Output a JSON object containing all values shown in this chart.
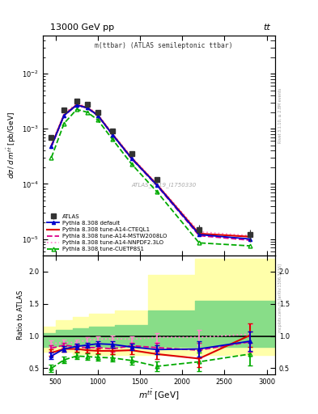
{
  "title_left": "13000 GeV pp",
  "title_right": "tt",
  "plot_label": "m(ttbar) (ATLAS semileptonic ttbar)",
  "watermark": "ATLAS_2019_I1750330",
  "right_label1": "Rivet 3.1.10, ≥ 2.8M events",
  "right_label2": "mcplots.cern.ch [arXiv:1306.3436]",
  "ylabel_main": "dσ / d m^{tbar(t)} [pb/GeV]",
  "ylabel_ratio": "Ratio to ATLAS",
  "xlabel": "m^{tbar(t)} [GeV]",
  "xlim": [
    350,
    3100
  ],
  "ylim_log": [
    5e-06,
    0.05
  ],
  "atlas_x": [
    450,
    600,
    750,
    875,
    1000,
    1175,
    1400,
    1700,
    2200,
    2800
  ],
  "atlas_y": [
    0.0007,
    0.0022,
    0.0032,
    0.0028,
    0.002,
    0.0009,
    0.00035,
    0.00012,
    1.5e-05,
    1.2e-05
  ],
  "atlas_yerr": [
    8e-05,
    0.0002,
    0.0003,
    0.00025,
    0.00018,
    8e-05,
    3e-05,
    1.5e-05,
    3e-06,
    3e-06
  ],
  "py_x": [
    450,
    600,
    750,
    875,
    1000,
    1175,
    1400,
    1700,
    2200,
    2800
  ],
  "py_default_y": [
    0.00048,
    0.00175,
    0.0027,
    0.0024,
    0.00175,
    0.00078,
    0.00029,
    9.5e-05,
    1.2e-05,
    1e-05
  ],
  "py_cteq_y": [
    0.00049,
    0.00178,
    0.00272,
    0.00242,
    0.00177,
    0.00079,
    0.000295,
    9.7e-05,
    1.25e-05,
    1.1e-05
  ],
  "py_mstw_y": [
    0.00047,
    0.00173,
    0.00268,
    0.00238,
    0.00173,
    0.00077,
    0.000285,
    9.3e-05,
    1.15e-05,
    9.5e-06
  ],
  "py_nnpdf_y": [
    0.00052,
    0.0019,
    0.00285,
    0.00252,
    0.00185,
    0.00082,
    0.00031,
    0.0001,
    1.35e-05,
    1.15e-05
  ],
  "py_cuetp_y": [
    0.0003,
    0.00125,
    0.00225,
    0.002,
    0.00145,
    0.00064,
    0.00023,
    7.2e-05,
    8.5e-06,
    7.5e-06
  ],
  "ratio_default": [
    0.69,
    0.8,
    0.84,
    0.86,
    0.88,
    0.87,
    0.83,
    0.79,
    0.8,
    0.92
  ],
  "ratio_cteq": [
    0.74,
    0.8,
    0.8,
    0.78,
    0.77,
    0.77,
    0.78,
    0.72,
    0.65,
    1.01
  ],
  "ratio_mstw": [
    0.81,
    0.86,
    0.83,
    0.82,
    0.82,
    0.8,
    0.85,
    0.82,
    0.78,
    0.91
  ],
  "ratio_nnpdf": [
    0.88,
    0.9,
    0.9,
    0.94,
    0.95,
    0.96,
    0.95,
    0.98,
    0.98,
    1.03
  ],
  "ratio_cuetp": [
    0.5,
    0.63,
    0.69,
    0.68,
    0.67,
    0.66,
    0.62,
    0.53,
    0.6,
    0.72
  ],
  "ratio_default_err": [
    0.05,
    0.04,
    0.04,
    0.04,
    0.04,
    0.05,
    0.05,
    0.07,
    0.12,
    0.15
  ],
  "ratio_cteq_err": [
    0.05,
    0.04,
    0.04,
    0.04,
    0.04,
    0.05,
    0.06,
    0.08,
    0.13,
    0.18
  ],
  "ratio_mstw_err": [
    0.05,
    0.04,
    0.04,
    0.04,
    0.04,
    0.05,
    0.05,
    0.07,
    0.12,
    0.16
  ],
  "ratio_nnpdf_err": [
    0.05,
    0.04,
    0.04,
    0.04,
    0.04,
    0.05,
    0.05,
    0.07,
    0.12,
    0.15
  ],
  "ratio_cuetp_err": [
    0.06,
    0.05,
    0.05,
    0.05,
    0.05,
    0.06,
    0.06,
    0.08,
    0.14,
    0.18
  ],
  "band_edges": [
    350,
    500,
    700,
    900,
    1200,
    1600,
    2150,
    3100
  ],
  "band_yellow_hi": [
    1.15,
    1.25,
    1.3,
    1.35,
    1.4,
    1.95,
    2.2
  ],
  "band_yellow_lo": [
    0.75,
    0.75,
    0.72,
    0.7,
    0.7,
    0.7,
    0.7
  ],
  "band_green_hi": [
    1.05,
    1.1,
    1.12,
    1.15,
    1.17,
    1.4,
    1.55
  ],
  "band_green_lo": [
    0.83,
    0.84,
    0.84,
    0.83,
    0.83,
    0.83,
    0.83
  ],
  "color_atlas": "#333333",
  "color_default": "#0000cc",
  "color_cteq": "#dd0000",
  "color_mstw": "#dd0088",
  "color_nnpdf": "#ff88cc",
  "color_cuetp": "#00aa00",
  "legend_labels": [
    "ATLAS",
    "Pythia 8.308 default",
    "Pythia 8.308 tune-A14-CTEQL1",
    "Pythia 8.308 tune-A14-MSTW2008LO",
    "Pythia 8.308 tune-A14-NNPDF2.3LO",
    "Pythia 8.308 tune-CUETP8S1"
  ]
}
